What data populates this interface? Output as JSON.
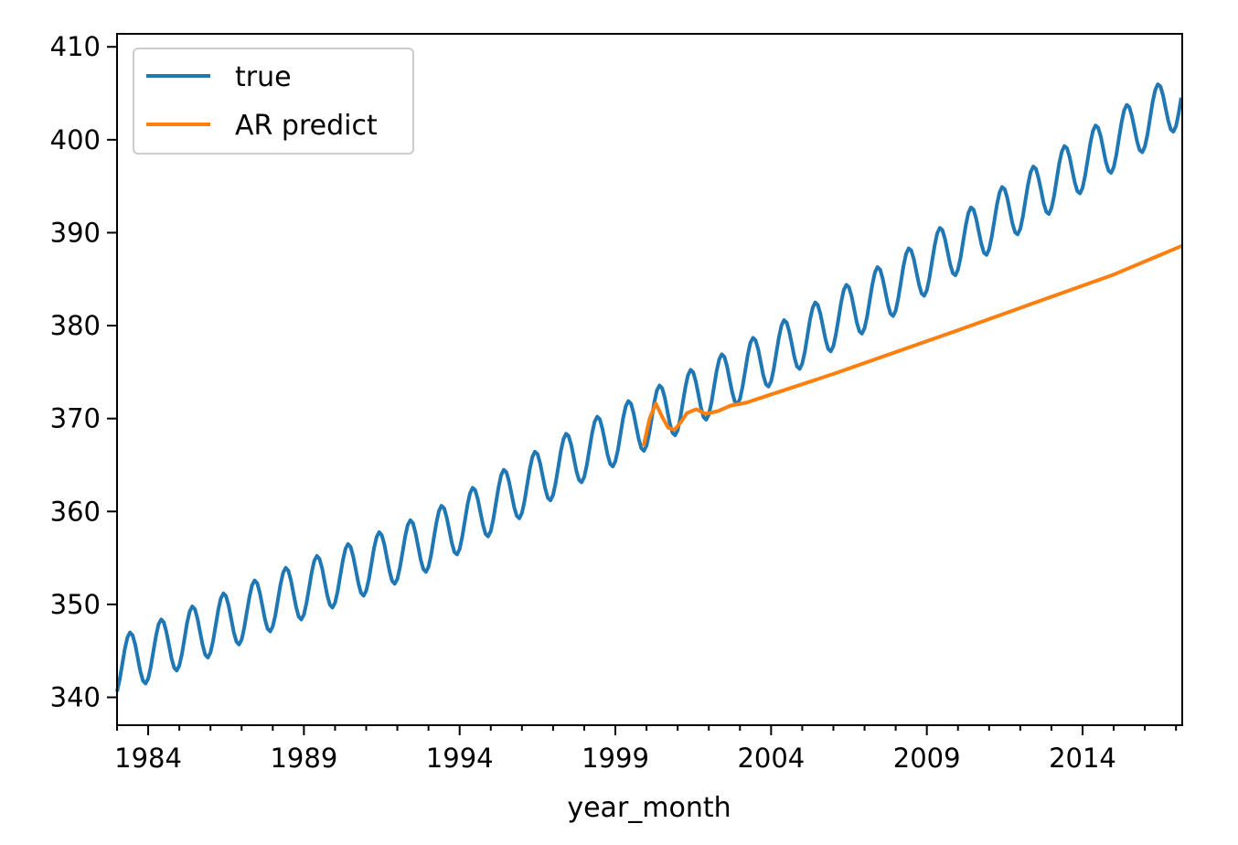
{
  "chart_data": {
    "type": "line",
    "title": "",
    "xlabel": "year_month",
    "ylabel": "",
    "xlim": [
      1983.0,
      2017.2
    ],
    "ylim": [
      337.0,
      411.4
    ],
    "x_ticks": [
      1984,
      1989,
      1994,
      1999,
      2004,
      2009,
      2014
    ],
    "x_tick_labels": [
      "1984",
      "1989",
      "1994",
      "1999",
      "2004",
      "2009",
      "2014"
    ],
    "y_ticks": [
      340,
      350,
      360,
      370,
      380,
      390,
      400,
      410
    ],
    "y_tick_labels": [
      "340",
      "350",
      "360",
      "370",
      "380",
      "390",
      "400",
      "410"
    ],
    "grid": false,
    "legend_position": "top-left",
    "series": [
      {
        "name": "true",
        "color": "#1f77b4",
        "frequency": "monthly",
        "start": 1983.0,
        "end": 2017.2,
        "trend_points": [
          [
            1983.0,
            343.3
          ],
          [
            1988.0,
            350.3
          ],
          [
            1993.0,
            356.7
          ],
          [
            1998.0,
            366.4
          ],
          [
            2003.0,
            374.8
          ],
          [
            2008.0,
            384.3
          ],
          [
            2013.0,
            395.3
          ],
          [
            2017.2,
            404.6
          ]
        ],
        "seasonal_amplitude": 3.1,
        "seasonal_peak_month": 5
      },
      {
        "name": "AR predict",
        "color": "#ff7f0e",
        "points": [
          [
            1999.9,
            367.0
          ],
          [
            2000.1,
            370.0
          ],
          [
            2000.3,
            371.6
          ],
          [
            2000.5,
            370.2
          ],
          [
            2000.7,
            369.0
          ],
          [
            2000.9,
            368.8
          ],
          [
            2001.1,
            369.6
          ],
          [
            2001.3,
            370.6
          ],
          [
            2001.6,
            371.0
          ],
          [
            2001.9,
            370.5
          ],
          [
            2002.3,
            370.8
          ],
          [
            2002.7,
            371.4
          ],
          [
            2003.2,
            371.7
          ],
          [
            2004.0,
            372.6
          ],
          [
            2006.0,
            374.8
          ],
          [
            2010.0,
            379.5
          ],
          [
            2015.0,
            385.5
          ],
          [
            2017.2,
            388.6
          ]
        ]
      }
    ]
  }
}
